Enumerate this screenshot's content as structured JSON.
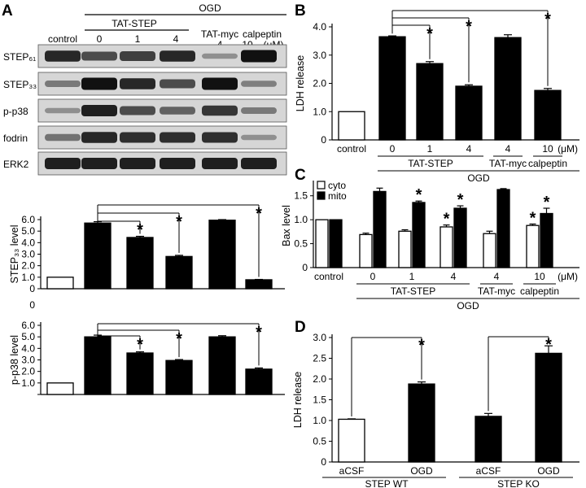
{
  "colors": {
    "black": "#000000",
    "white": "#ffffff",
    "blot_bg": "#d6d6d6",
    "band": "#111111"
  },
  "panelA": {
    "letter": "A",
    "blot": {
      "ogd_label": "OGD",
      "tat_step_label": "TAT-STEP",
      "tat_myc_label": "TAT-myc",
      "calpeptin_label": "calpeptin",
      "control_label": "control",
      "conc_labels": [
        "0",
        "1",
        "4",
        "4",
        "10"
      ],
      "unit": "(μM)",
      "rows": [
        {
          "label": "STEP₆₁",
          "intensity": [
            0.85,
            0.6,
            0.7,
            0.85,
            0.15,
            1.0
          ]
        },
        {
          "label": "STEP₃₃",
          "intensity": [
            0.3,
            1.0,
            0.85,
            0.6,
            1.0,
            0.25
          ]
        },
        {
          "label": "p-p38",
          "intensity": [
            0.15,
            0.9,
            0.6,
            0.45,
            0.75,
            0.3
          ]
        },
        {
          "label": "fodrin",
          "intensity": [
            0.35,
            0.85,
            0.8,
            0.8,
            0.8,
            0.15
          ]
        },
        {
          "label": "ERK2",
          "intensity": [
            0.9,
            0.9,
            0.9,
            0.9,
            0.9,
            0.9
          ]
        }
      ]
    }
  },
  "chart_data": [
    {
      "id": "A-step33",
      "type": "bar",
      "ylabel": "STEP₃₃ level",
      "ylim": [
        0,
        6.0
      ],
      "yticks": [
        "0",
        "1.0",
        "2.0",
        "3.0",
        "4.0",
        "5.0",
        "6.0"
      ],
      "values": [
        1.0,
        5.7,
        4.45,
        2.8,
        5.95,
        0.78
      ],
      "errors": [
        0,
        0.12,
        0.1,
        0.1,
        0.05,
        0.03
      ],
      "fills": [
        "white",
        "black",
        "black",
        "black",
        "black",
        "black"
      ],
      "significance": [
        {
          "from": 1,
          "to": 2,
          "star": "*"
        },
        {
          "from": 1,
          "to": 3,
          "star": "*"
        },
        {
          "from": 1,
          "to": 5,
          "star": "*"
        }
      ]
    },
    {
      "id": "A-pp38",
      "type": "bar",
      "ylabel": "p-p38 level",
      "ylim": [
        0,
        6.0
      ],
      "yticks": [
        "",
        "1.0",
        "2.0",
        "3.0",
        "4.0",
        "5.0",
        "6.0"
      ],
      "values": [
        1.0,
        5.0,
        3.6,
        2.95,
        5.0,
        2.2
      ],
      "errors": [
        0,
        0.15,
        0.1,
        0.08,
        0.1,
        0.1
      ],
      "fills": [
        "white",
        "black",
        "black",
        "black",
        "black",
        "black"
      ],
      "significance": [
        {
          "from": 1,
          "to": 2,
          "star": "*"
        },
        {
          "from": 1,
          "to": 3,
          "star": "*"
        },
        {
          "from": 1,
          "to": 5,
          "star": "*"
        }
      ]
    },
    {
      "id": "B",
      "letter": "B",
      "type": "bar",
      "ylabel": "LDH release",
      "ylim": [
        0,
        4.0
      ],
      "yticks": [
        "0",
        "1.0",
        "2.0",
        "3.0",
        "4.0"
      ],
      "categories": [
        "control",
        "0",
        "1",
        "4",
        "4",
        "10"
      ],
      "unit": "(μM)",
      "groups": [
        {
          "label": "TAT-STEP",
          "from": 1,
          "to": 3
        },
        {
          "label": "TAT-myc",
          "from": 4,
          "to": 4
        },
        {
          "label": "calpeptin",
          "from": 5,
          "to": 5
        }
      ],
      "outer_group": {
        "label": "OGD",
        "from": 1,
        "to": 5
      },
      "values": [
        1.0,
        3.65,
        2.7,
        1.9,
        3.62,
        1.75
      ],
      "errors": [
        0,
        0.03,
        0.07,
        0.05,
        0.1,
        0.07
      ],
      "fills": [
        "white",
        "black",
        "black",
        "black",
        "black",
        "black"
      ],
      "significance": [
        {
          "from": 1,
          "to": 2,
          "star": "*"
        },
        {
          "from": 1,
          "to": 3,
          "star": "*"
        },
        {
          "from": 1,
          "to": 5,
          "star": "*"
        }
      ]
    },
    {
      "id": "C",
      "letter": "C",
      "type": "bar",
      "ylabel": "Bax level",
      "ylim": [
        0,
        1.75
      ],
      "yticks": [
        "0",
        "0.5",
        "1.0",
        "1.5"
      ],
      "ytick_values": [
        0,
        0.5,
        1.0,
        1.5
      ],
      "categories": [
        "control",
        "0",
        "1",
        "4",
        "4",
        "10"
      ],
      "unit": "(μM)",
      "groups": [
        {
          "label": "TAT-STEP",
          "from": 1,
          "to": 3
        },
        {
          "label": "TAT-myc",
          "from": 4,
          "to": 4
        },
        {
          "label": "calpeptin",
          "from": 5,
          "to": 5
        }
      ],
      "outer_group": {
        "label": "OGD",
        "from": 1,
        "to": 5
      },
      "legend": [
        {
          "name": "cyto",
          "fill": "white"
        },
        {
          "name": "mito",
          "fill": "black"
        }
      ],
      "series": [
        {
          "name": "cyto",
          "values": [
            1.0,
            0.69,
            0.76,
            0.85,
            0.71,
            0.88
          ],
          "errors": [
            0,
            0.03,
            0.03,
            0.04,
            0.05,
            0.03
          ],
          "stars": [
            false,
            false,
            false,
            true,
            false,
            true
          ]
        },
        {
          "name": "mito",
          "values": [
            1.0,
            1.59,
            1.36,
            1.24,
            1.63,
            1.13
          ],
          "errors": [
            0,
            0.07,
            0.03,
            0.05,
            0.02,
            0.11
          ],
          "stars": [
            false,
            false,
            true,
            true,
            false,
            true
          ]
        }
      ]
    },
    {
      "id": "D",
      "letter": "D",
      "type": "bar",
      "ylabel": "LDH release",
      "ylim": [
        0,
        3.0
      ],
      "yticks": [
        "0",
        "0.5",
        "1.0",
        "1.5",
        "2.0",
        "2.5",
        "3.0"
      ],
      "ytick_values": [
        0,
        0.5,
        1.0,
        1.5,
        2.0,
        2.5,
        3.0
      ],
      "categories": [
        "aCSF",
        "OGD",
        "aCSF",
        "OGD"
      ],
      "groups": [
        {
          "label": "STEP WT",
          "from": 0,
          "to": 1
        },
        {
          "label": "STEP KO",
          "from": 2,
          "to": 3
        }
      ],
      "values": [
        1.03,
        1.88,
        1.1,
        2.62
      ],
      "errors": [
        0.01,
        0.05,
        0.07,
        0.18
      ],
      "fills": [
        "white",
        "black",
        "black",
        "black"
      ],
      "significance": [
        {
          "from": 0,
          "to": 1,
          "star": "*"
        },
        {
          "from": 2,
          "to": 3,
          "star": "*"
        }
      ]
    }
  ]
}
